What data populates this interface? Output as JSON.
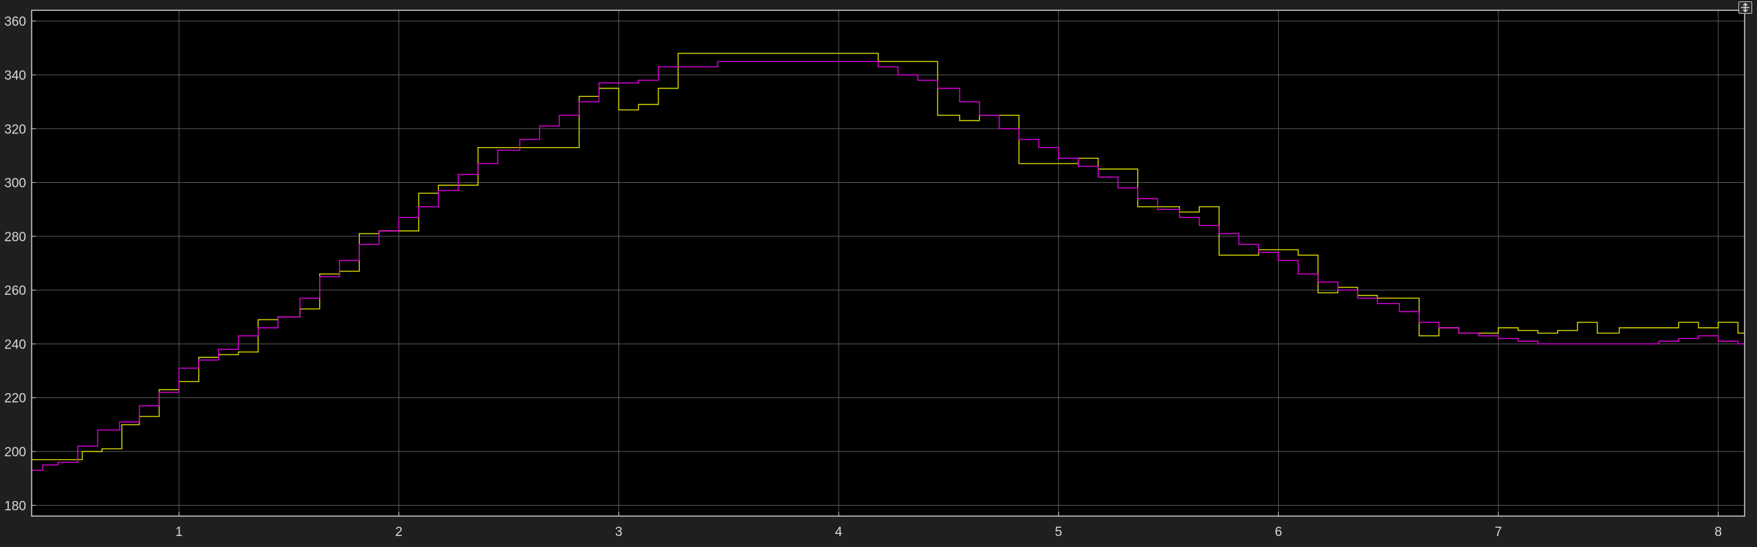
{
  "colors": {
    "figure_background": "#1f1f1f",
    "axes_background": "#000000",
    "grid": "#5a5a5a",
    "axes_border": "#d0d0d0",
    "tick_text": "#d8d8d8",
    "series_yellow": "#dede00",
    "series_magenta": "#e600e6"
  },
  "controls": {
    "expand_icon": "expand-arrows-icon"
  },
  "chart_data": {
    "type": "line",
    "style": "stairs",
    "xlim": [
      0.33,
      8.12
    ],
    "ylim": [
      176,
      364
    ],
    "grid": true,
    "legend": "none",
    "xticks": [
      1,
      2,
      3,
      4,
      5,
      6,
      7,
      8
    ],
    "yticks": [
      180,
      200,
      220,
      240,
      260,
      280,
      300,
      320,
      340,
      360
    ],
    "xlabel": "",
    "ylabel": "",
    "title": "",
    "series": [
      {
        "color": "#dede00",
        "points": [
          [
            0.33,
            197
          ],
          [
            0.38,
            197
          ],
          [
            0.48,
            197
          ],
          [
            0.56,
            200
          ],
          [
            0.65,
            201
          ],
          [
            0.74,
            210
          ],
          [
            0.82,
            213
          ],
          [
            0.91,
            223
          ],
          [
            1.0,
            226
          ],
          [
            1.09,
            235
          ],
          [
            1.18,
            236
          ],
          [
            1.27,
            237
          ],
          [
            1.36,
            249
          ],
          [
            1.45,
            250
          ],
          [
            1.55,
            253
          ],
          [
            1.64,
            266
          ],
          [
            1.73,
            267
          ],
          [
            1.82,
            281
          ],
          [
            1.91,
            282
          ],
          [
            2.09,
            296
          ],
          [
            2.18,
            299
          ],
          [
            2.36,
            313
          ],
          [
            2.82,
            332
          ],
          [
            2.91,
            335
          ],
          [
            3.0,
            327
          ],
          [
            3.09,
            329
          ],
          [
            3.18,
            335
          ],
          [
            3.27,
            348
          ],
          [
            4.18,
            345
          ],
          [
            4.45,
            325
          ],
          [
            4.55,
            323
          ],
          [
            4.64,
            325
          ],
          [
            4.82,
            307
          ],
          [
            5.0,
            307
          ],
          [
            5.09,
            309
          ],
          [
            5.18,
            305
          ],
          [
            5.36,
            291
          ],
          [
            5.55,
            289
          ],
          [
            5.64,
            291
          ],
          [
            5.73,
            273
          ],
          [
            5.91,
            275
          ],
          [
            6.09,
            273
          ],
          [
            6.18,
            259
          ],
          [
            6.27,
            261
          ],
          [
            6.36,
            258
          ],
          [
            6.45,
            257
          ],
          [
            6.55,
            257
          ],
          [
            6.64,
            243
          ],
          [
            6.73,
            246
          ],
          [
            6.82,
            244
          ],
          [
            6.91,
            244
          ],
          [
            7.0,
            246
          ],
          [
            7.09,
            245
          ],
          [
            7.18,
            244
          ],
          [
            7.27,
            245
          ],
          [
            7.36,
            248
          ],
          [
            7.45,
            244
          ],
          [
            7.55,
            246
          ],
          [
            7.64,
            246
          ],
          [
            7.73,
            246
          ],
          [
            7.82,
            248
          ],
          [
            7.91,
            246
          ],
          [
            8.0,
            248
          ],
          [
            8.09,
            244
          ],
          [
            8.12,
            248
          ]
        ]
      },
      {
        "color": "#e600e6",
        "points": [
          [
            0.33,
            193
          ],
          [
            0.38,
            195
          ],
          [
            0.45,
            196
          ],
          [
            0.54,
            202
          ],
          [
            0.63,
            208
          ],
          [
            0.73,
            211
          ],
          [
            0.82,
            217
          ],
          [
            0.91,
            222
          ],
          [
            1.0,
            231
          ],
          [
            1.09,
            234
          ],
          [
            1.18,
            238
          ],
          [
            1.27,
            243
          ],
          [
            1.36,
            246
          ],
          [
            1.45,
            250
          ],
          [
            1.55,
            257
          ],
          [
            1.64,
            265
          ],
          [
            1.73,
            271
          ],
          [
            1.82,
            277
          ],
          [
            1.91,
            282
          ],
          [
            2.0,
            287
          ],
          [
            2.09,
            291
          ],
          [
            2.18,
            297
          ],
          [
            2.27,
            303
          ],
          [
            2.36,
            307
          ],
          [
            2.45,
            312
          ],
          [
            2.55,
            316
          ],
          [
            2.64,
            321
          ],
          [
            2.73,
            325
          ],
          [
            2.82,
            330
          ],
          [
            2.91,
            337
          ],
          [
            3.09,
            338
          ],
          [
            3.18,
            343
          ],
          [
            3.36,
            343
          ],
          [
            3.45,
            345
          ],
          [
            4.18,
            343
          ],
          [
            4.27,
            340
          ],
          [
            4.36,
            338
          ],
          [
            4.45,
            335
          ],
          [
            4.55,
            330
          ],
          [
            4.64,
            325
          ],
          [
            4.73,
            320
          ],
          [
            4.82,
            316
          ],
          [
            4.91,
            313
          ],
          [
            5.0,
            309
          ],
          [
            5.09,
            306
          ],
          [
            5.18,
            302
          ],
          [
            5.27,
            298
          ],
          [
            5.36,
            294
          ],
          [
            5.45,
            290
          ],
          [
            5.55,
            287
          ],
          [
            5.64,
            284
          ],
          [
            5.73,
            281
          ],
          [
            5.82,
            277
          ],
          [
            5.91,
            274
          ],
          [
            6.0,
            271
          ],
          [
            6.09,
            266
          ],
          [
            6.18,
            263
          ],
          [
            6.27,
            260
          ],
          [
            6.36,
            257
          ],
          [
            6.45,
            255
          ],
          [
            6.55,
            252
          ],
          [
            6.64,
            248
          ],
          [
            6.73,
            246
          ],
          [
            6.82,
            244
          ],
          [
            6.91,
            243
          ],
          [
            7.0,
            242
          ],
          [
            7.09,
            241
          ],
          [
            7.18,
            240
          ],
          [
            7.36,
            240
          ],
          [
            7.55,
            240
          ],
          [
            7.64,
            240
          ],
          [
            7.73,
            241
          ],
          [
            7.82,
            242
          ],
          [
            7.91,
            243
          ],
          [
            8.0,
            241
          ],
          [
            8.09,
            240
          ],
          [
            8.12,
            240
          ]
        ]
      }
    ]
  }
}
